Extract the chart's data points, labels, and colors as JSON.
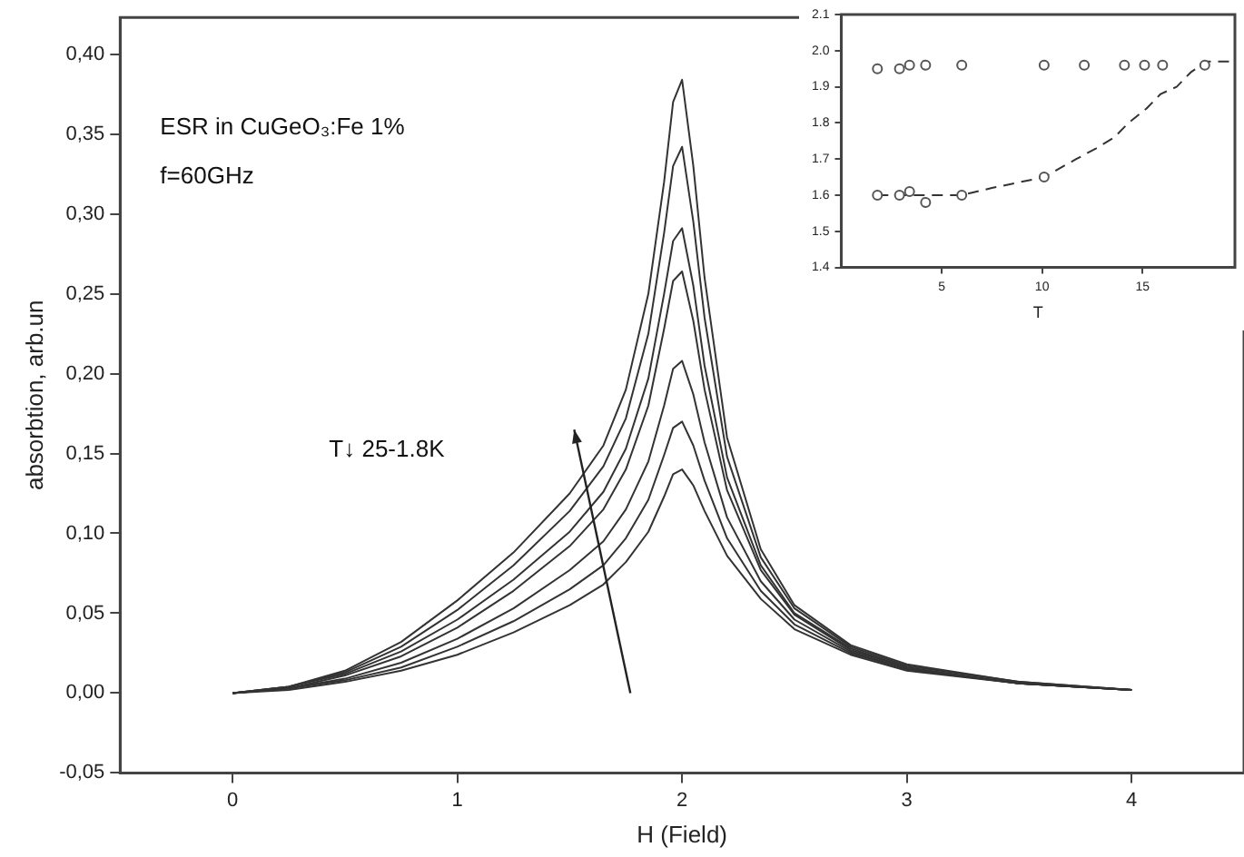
{
  "chart_data": [
    {
      "type": "line",
      "xlabel": "H (Field)",
      "ylabel": "absorbtion, arb.un",
      "annotations": [
        "ESR in CuGeO₃:Fe 1%",
        "f=60GHz",
        "T↓ 25-1.8K"
      ],
      "x": [
        0,
        0.25,
        0.5,
        0.75,
        1,
        1.25,
        1.5,
        1.65,
        1.75,
        1.85,
        1.92,
        1.96,
        2.0,
        2.05,
        2.1,
        2.2,
        2.35,
        2.5,
        2.75,
        3,
        3.5,
        4
      ],
      "xlim": [
        -0.5,
        4.5
      ],
      "xticks": [
        0,
        1,
        2,
        3,
        4
      ],
      "ylim": [
        -0.05,
        0.423
      ],
      "yticks": [
        {
          "value": -0.05,
          "label": "-0,05"
        },
        {
          "value": 0,
          "label": "0,00"
        },
        {
          "value": 0.05,
          "label": "0,05"
        },
        {
          "value": 0.1,
          "label": "0,10"
        },
        {
          "value": 0.15,
          "label": "0,15"
        },
        {
          "value": 0.2,
          "label": "0,20"
        },
        {
          "value": 0.25,
          "label": "0,25"
        },
        {
          "value": 0.3,
          "label": "0,30"
        },
        {
          "value": 0.35,
          "label": "0,35"
        },
        {
          "value": 0.4,
          "label": "0,40"
        }
      ],
      "marker": "none",
      "legend": false,
      "series": [
        {
          "color": "#333333",
          "values": [
            0,
            0.004,
            0.014,
            0.032,
            0.058,
            0.088,
            0.125,
            0.155,
            0.19,
            0.25,
            0.32,
            0.37,
            0.384,
            0.33,
            0.26,
            0.16,
            0.09,
            0.055,
            0.03,
            0.018,
            0.007,
            0.002
          ]
        },
        {
          "color": "#333333",
          "values": [
            0,
            0.004,
            0.013,
            0.029,
            0.052,
            0.08,
            0.114,
            0.142,
            0.172,
            0.225,
            0.288,
            0.33,
            0.342,
            0.295,
            0.235,
            0.148,
            0.085,
            0.053,
            0.029,
            0.017,
            0.007,
            0.002
          ]
        },
        {
          "color": "#333333",
          "values": [
            0,
            0.004,
            0.012,
            0.026,
            0.046,
            0.071,
            0.101,
            0.126,
            0.153,
            0.197,
            0.25,
            0.283,
            0.291,
            0.255,
            0.205,
            0.135,
            0.08,
            0.05,
            0.028,
            0.016,
            0.006,
            0.002
          ]
        },
        {
          "color": "#333333",
          "values": [
            0,
            0.003,
            0.011,
            0.023,
            0.041,
            0.064,
            0.092,
            0.115,
            0.14,
            0.18,
            0.228,
            0.258,
            0.264,
            0.233,
            0.19,
            0.127,
            0.077,
            0.049,
            0.027,
            0.016,
            0.006,
            0.002
          ]
        },
        {
          "color": "#333333",
          "values": [
            0,
            0.003,
            0.009,
            0.019,
            0.034,
            0.053,
            0.077,
            0.095,
            0.115,
            0.145,
            0.18,
            0.203,
            0.208,
            0.187,
            0.157,
            0.11,
            0.07,
            0.046,
            0.026,
            0.015,
            0.006,
            0.002
          ]
        },
        {
          "color": "#333333",
          "values": [
            0,
            0.003,
            0.008,
            0.016,
            0.029,
            0.045,
            0.065,
            0.08,
            0.097,
            0.121,
            0.149,
            0.166,
            0.17,
            0.155,
            0.133,
            0.097,
            0.064,
            0.043,
            0.025,
            0.015,
            0.006,
            0.002
          ]
        },
        {
          "color": "#333333",
          "values": [
            0,
            0.002,
            0.007,
            0.014,
            0.024,
            0.038,
            0.055,
            0.068,
            0.082,
            0.101,
            0.123,
            0.137,
            0.14,
            0.13,
            0.114,
            0.086,
            0.059,
            0.04,
            0.024,
            0.014,
            0.006,
            0.002
          ]
        }
      ]
    },
    {
      "type": "scatter",
      "xlabel": "T",
      "xlim": [
        0,
        19.6
      ],
      "xticks": [
        5,
        10,
        15
      ],
      "ylim": [
        1.4,
        2.1
      ],
      "yticks": [
        1.4,
        1.5,
        1.6,
        1.7,
        1.8,
        1.9,
        {
          "value": 2,
          "label": "2.0"
        },
        2.1
      ],
      "marker": "circle",
      "legend": false,
      "series": [
        {
          "color": "#555555",
          "x": [
            1.8,
            2.9,
            3.4,
            4.2,
            6.0,
            10.1,
            12.1,
            14.1,
            15.1,
            16.0,
            18.1
          ],
          "values": [
            1.95,
            1.95,
            1.96,
            1.96,
            1.96,
            1.96,
            1.96,
            1.96,
            1.96,
            1.96,
            1.96
          ]
        },
        {
          "color": "#555555",
          "x": [
            1.8,
            2.9,
            3.4,
            4.2,
            6.0,
            10.1
          ],
          "values": [
            1.6,
            1.6,
            1.61,
            1.58,
            1.6,
            1.65
          ]
        },
        {
          "type": "line",
          "marker": "none",
          "line_style": "dashed",
          "color": "#333333",
          "x": [
            1.8,
            6.0,
            7.5,
            10.1,
            11.7,
            12.7,
            13.6,
            14.3,
            15.2,
            15.9,
            16.7,
            17.4,
            18.2,
            19.4
          ],
          "values": [
            1.6,
            1.6,
            1.62,
            1.65,
            1.7,
            1.73,
            1.76,
            1.8,
            1.84,
            1.88,
            1.9,
            1.94,
            1.97,
            1.97
          ]
        }
      ]
    }
  ]
}
